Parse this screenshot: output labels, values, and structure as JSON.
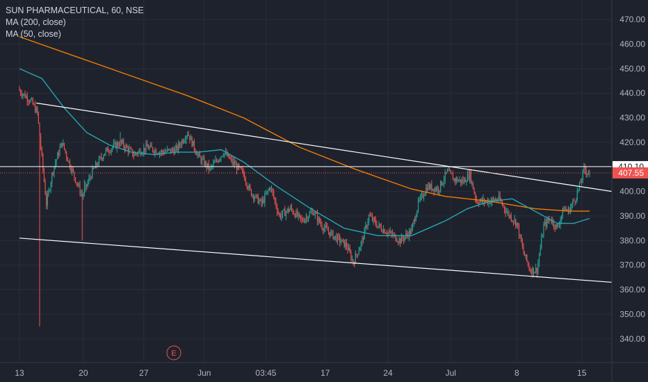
{
  "legend": {
    "title": "SUN PHARMACEUTICAL, 60, NSE",
    "ma200": "MA (200, close)",
    "ma50": "MA (50, close)"
  },
  "event_marker": "E",
  "colors": {
    "background": "#1e222d",
    "grid": "#2a2e39",
    "axis_text": "#b2b5be",
    "up": "#26a69a",
    "down": "#ef5350",
    "ma200": "#f57c00",
    "ma50": "#26a6b0",
    "trendline": "#ffffff",
    "price_badge": "#ef5350",
    "level_badge": "#ffffff"
  },
  "chart_data": {
    "type": "candlestick",
    "y_axis": {
      "ticks": [
        "470.00",
        "460.00",
        "450.00",
        "440.00",
        "430.00",
        "420.00",
        "410.00",
        "400.00",
        "390.00",
        "380.00",
        "370.00",
        "360.00",
        "350.00",
        "340.00"
      ],
      "range": [
        333,
        475
      ]
    },
    "x_axis": {
      "ticks": [
        "13",
        "20",
        "27",
        "Jun",
        "03:45",
        "17",
        "24",
        "Jul",
        "8",
        "15"
      ],
      "tick_bar_index": [
        0,
        57,
        111,
        165,
        220,
        273,
        329,
        385,
        444,
        502
      ],
      "bar_count": 510
    },
    "last_price_label": "407.55",
    "last_price": 407.55,
    "horizontal_level_label": "410.10",
    "horizontal_level": 410.1,
    "series": {
      "close_path": [
        {
          "t": 0,
          "v": 441
        },
        {
          "t": 10,
          "v": 437
        },
        {
          "t": 16,
          "v": 432
        },
        {
          "t": 24,
          "v": 395
        },
        {
          "t": 30,
          "v": 409
        },
        {
          "t": 38,
          "v": 420
        },
        {
          "t": 44,
          "v": 412
        },
        {
          "t": 56,
          "v": 398
        },
        {
          "t": 65,
          "v": 408
        },
        {
          "t": 76,
          "v": 416
        },
        {
          "t": 90,
          "v": 420
        },
        {
          "t": 102,
          "v": 415
        },
        {
          "t": 114,
          "v": 418
        },
        {
          "t": 126,
          "v": 416
        },
        {
          "t": 140,
          "v": 417
        },
        {
          "t": 150,
          "v": 424
        },
        {
          "t": 160,
          "v": 414
        },
        {
          "t": 170,
          "v": 409
        },
        {
          "t": 182,
          "v": 416
        },
        {
          "t": 190,
          "v": 412
        },
        {
          "t": 200,
          "v": 407
        },
        {
          "t": 206,
          "v": 400
        },
        {
          "t": 216,
          "v": 395
        },
        {
          "t": 224,
          "v": 402
        },
        {
          "t": 232,
          "v": 390
        },
        {
          "t": 242,
          "v": 393
        },
        {
          "t": 252,
          "v": 388
        },
        {
          "t": 262,
          "v": 392
        },
        {
          "t": 270,
          "v": 386
        },
        {
          "t": 280,
          "v": 382
        },
        {
          "t": 292,
          "v": 378
        },
        {
          "t": 298,
          "v": 371
        },
        {
          "t": 306,
          "v": 380
        },
        {
          "t": 312,
          "v": 390
        },
        {
          "t": 320,
          "v": 386
        },
        {
          "t": 330,
          "v": 383
        },
        {
          "t": 340,
          "v": 380
        },
        {
          "t": 350,
          "v": 384
        },
        {
          "t": 356,
          "v": 395
        },
        {
          "t": 364,
          "v": 402
        },
        {
          "t": 374,
          "v": 401
        },
        {
          "t": 382,
          "v": 408
        },
        {
          "t": 388,
          "v": 405
        },
        {
          "t": 396,
          "v": 404
        },
        {
          "t": 402,
          "v": 407
        },
        {
          "t": 408,
          "v": 396
        },
        {
          "t": 418,
          "v": 396
        },
        {
          "t": 428,
          "v": 397
        },
        {
          "t": 436,
          "v": 391
        },
        {
          "t": 444,
          "v": 387
        },
        {
          "t": 450,
          "v": 375
        },
        {
          "t": 456,
          "v": 368
        },
        {
          "t": 462,
          "v": 368
        },
        {
          "t": 468,
          "v": 386
        },
        {
          "t": 474,
          "v": 389
        },
        {
          "t": 480,
          "v": 385
        },
        {
          "t": 486,
          "v": 393
        },
        {
          "t": 490,
          "v": 392
        },
        {
          "t": 496,
          "v": 397
        },
        {
          "t": 500,
          "v": 402
        },
        {
          "t": 504,
          "v": 409
        },
        {
          "t": 509,
          "v": 407.55
        }
      ],
      "ma200": [
        {
          "t": 0,
          "v": 463
        },
        {
          "t": 50,
          "v": 455
        },
        {
          "t": 100,
          "v": 447
        },
        {
          "t": 150,
          "v": 439
        },
        {
          "t": 200,
          "v": 430
        },
        {
          "t": 250,
          "v": 418
        },
        {
          "t": 300,
          "v": 409
        },
        {
          "t": 350,
          "v": 401
        },
        {
          "t": 380,
          "v": 398
        },
        {
          "t": 420,
          "v": 396
        },
        {
          "t": 460,
          "v": 393
        },
        {
          "t": 490,
          "v": 392
        },
        {
          "t": 509,
          "v": 392
        }
      ],
      "ma50": [
        {
          "t": 0,
          "v": 450
        },
        {
          "t": 20,
          "v": 446
        },
        {
          "t": 40,
          "v": 434
        },
        {
          "t": 60,
          "v": 424
        },
        {
          "t": 80,
          "v": 419
        },
        {
          "t": 100,
          "v": 416
        },
        {
          "t": 120,
          "v": 415
        },
        {
          "t": 140,
          "v": 416
        },
        {
          "t": 160,
          "v": 416
        },
        {
          "t": 180,
          "v": 417
        },
        {
          "t": 200,
          "v": 412
        },
        {
          "t": 230,
          "v": 402
        },
        {
          "t": 260,
          "v": 393
        },
        {
          "t": 290,
          "v": 385
        },
        {
          "t": 320,
          "v": 382
        },
        {
          "t": 350,
          "v": 382
        },
        {
          "t": 380,
          "v": 388
        },
        {
          "t": 400,
          "v": 393
        },
        {
          "t": 420,
          "v": 396
        },
        {
          "t": 440,
          "v": 397
        },
        {
          "t": 460,
          "v": 392
        },
        {
          "t": 480,
          "v": 387
        },
        {
          "t": 495,
          "v": 387
        },
        {
          "t": 509,
          "v": 389
        }
      ]
    },
    "trendlines": [
      {
        "name": "upper",
        "from": {
          "t": 15,
          "v": 436
        },
        "to": {
          "t": 509,
          "v": 400
        }
      },
      {
        "name": "lower",
        "from": {
          "t": 0,
          "v": 381
        },
        "to": {
          "t": 509,
          "v": 363
        }
      }
    ]
  }
}
